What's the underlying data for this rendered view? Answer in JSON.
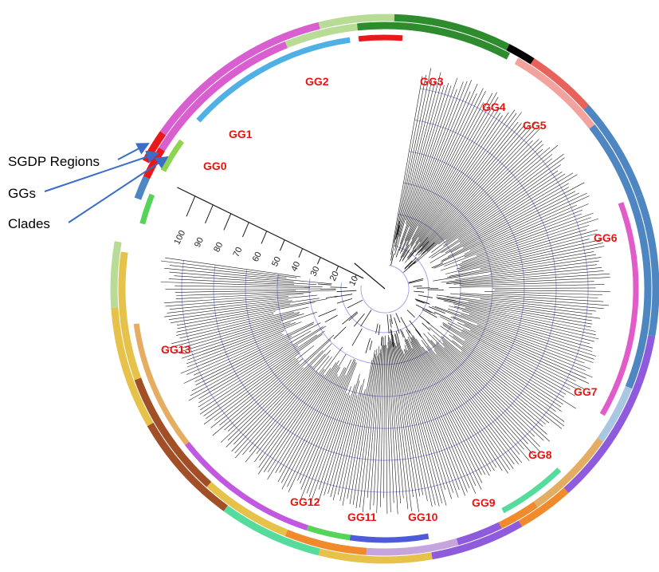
{
  "callouts": {
    "sgdp_regions": "SGDP Regions",
    "ggs": "GGs",
    "clades": "Clades"
  },
  "gg_labels": [
    "GG0",
    "GG1",
    "GG2",
    "GG3",
    "GG4",
    "GG5",
    "GG6",
    "GG7",
    "GG8",
    "GG9",
    "GG10",
    "GG11",
    "GG12",
    "GG13"
  ],
  "scale_ticks": [
    "10",
    "20",
    "30",
    "40",
    "50",
    "60",
    "70",
    "80",
    "90",
    "100"
  ],
  "colors": {
    "gg_label": "#e8140f",
    "tree_branch": "#1a1a1a",
    "scale_ring": "#7b7bea",
    "arrow": "#3a6cc8",
    "magenta": "#d95fd0",
    "light_green": "#b8dc96",
    "dark_green": "#2e8b2e",
    "black": "#000000",
    "salmon": "#e8615a",
    "pink": "#f2a39d",
    "steel_blue": "#4d86c0",
    "light_blue": "#a8c8e2",
    "purple": "#8f5bdd",
    "orange": "#f08a2a",
    "tan": "#e4ad62",
    "brown": "#a24f28",
    "yellow": "#e6c24a",
    "mint": "#55dc9d",
    "sky_blue": "#4fb0e6",
    "lilac": "#c6a4dd",
    "indigo": "#5b4bc4",
    "red": "#e8191a",
    "lime": "#8fd44f",
    "gg_magenta": "#df5cc9",
    "gg_purple": "#c258df",
    "gg_blue": "#4d5ad9",
    "gg_green": "#55d457"
  }
}
